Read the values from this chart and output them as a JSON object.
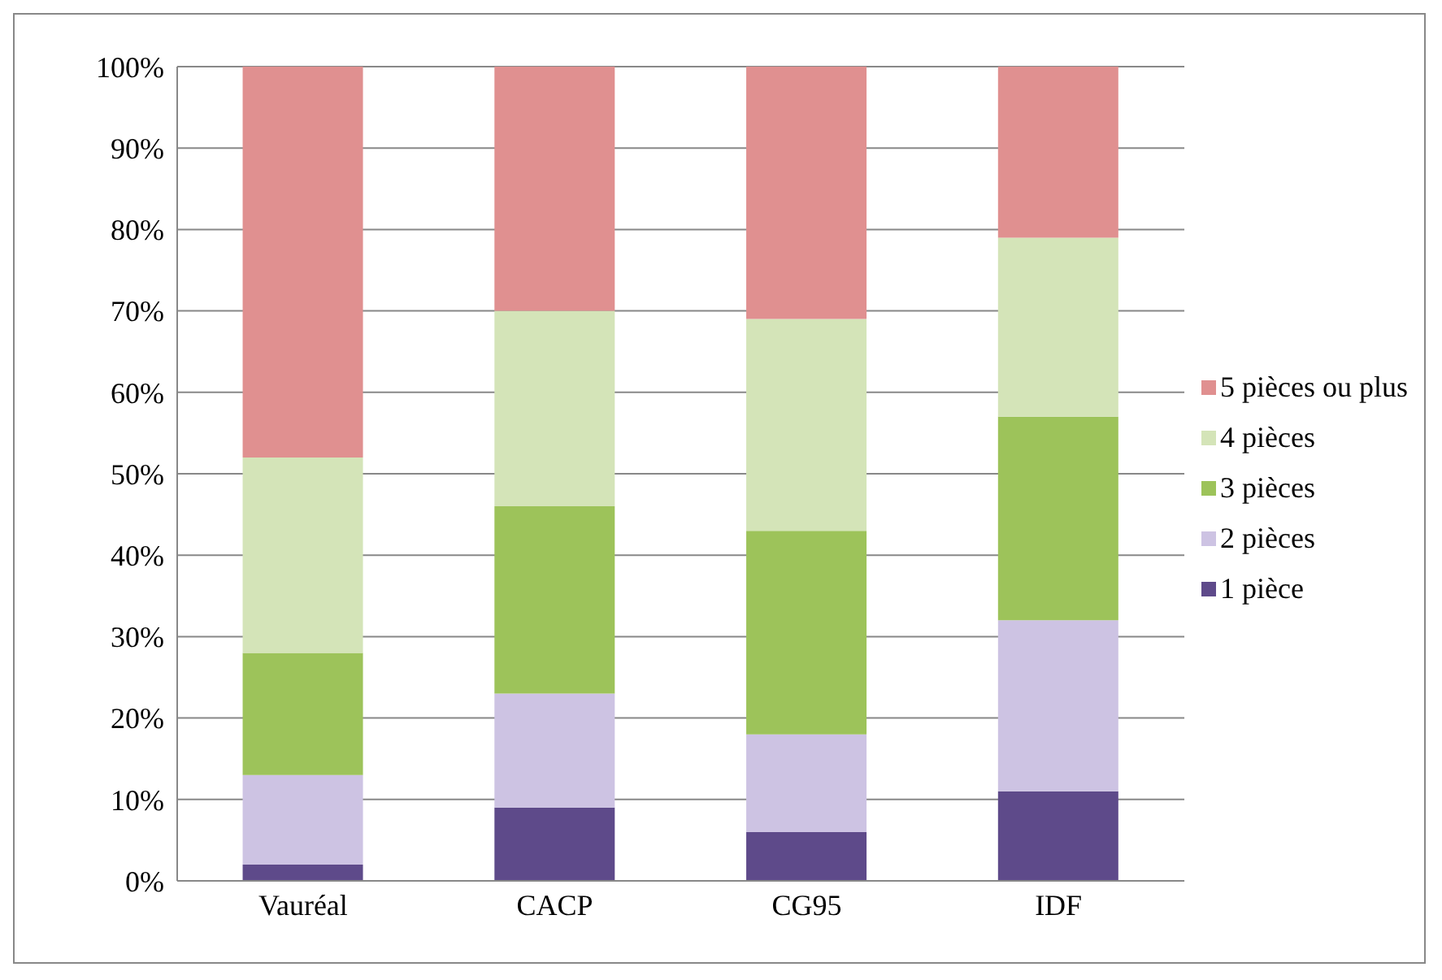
{
  "chart_data": {
    "type": "bar",
    "stacked": true,
    "categories": [
      "Vauréal",
      "CACP",
      "CG95",
      "IDF"
    ],
    "series": [
      {
        "name": "1 pièce",
        "color": "#5e4a8a",
        "values": [
          2,
          9,
          6,
          11
        ]
      },
      {
        "name": "2 pièces",
        "color": "#cdc3e3",
        "values": [
          11,
          14,
          12,
          21
        ]
      },
      {
        "name": "3 pièces",
        "color": "#9dc35a",
        "values": [
          15,
          23,
          25,
          25
        ]
      },
      {
        "name": "4 pièces",
        "color": "#d4e4b8",
        "values": [
          24,
          24,
          26,
          22
        ]
      },
      {
        "name": "5 pièces ou plus",
        "color": "#e09090",
        "values": [
          48,
          30,
          31,
          21
        ]
      }
    ],
    "ylim": [
      0,
      100
    ],
    "yticks": [
      {
        "value": 0,
        "label": "0%"
      },
      {
        "value": 10,
        "label": "10%"
      },
      {
        "value": 20,
        "label": "20%"
      },
      {
        "value": 30,
        "label": "30%"
      },
      {
        "value": 40,
        "label": "40%"
      },
      {
        "value": 50,
        "label": "50%"
      },
      {
        "value": 60,
        "label": "60%"
      },
      {
        "value": 70,
        "label": "70%"
      },
      {
        "value": 80,
        "label": "80%"
      },
      {
        "value": 90,
        "label": "90%"
      },
      {
        "value": 100,
        "label": "100%"
      }
    ],
    "grid": "y",
    "legend": "right"
  }
}
